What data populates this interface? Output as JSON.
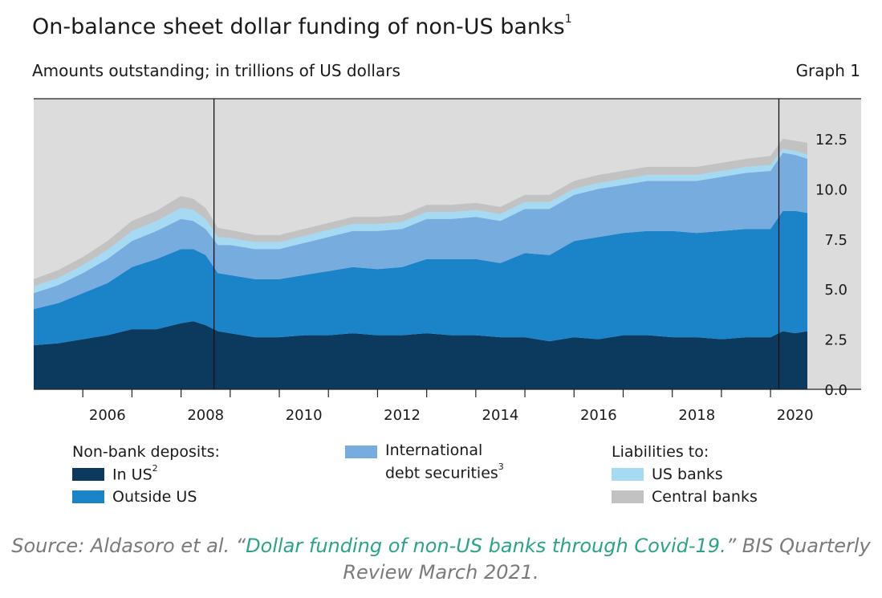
{
  "header": {
    "title": "On-balance sheet dollar funding of non-US banks",
    "title_note": "1",
    "subtitle": "Amounts outstanding; in trillions of US dollars",
    "graph_label": "Graph 1"
  },
  "legend": {
    "group1_heading": "Non-bank deposits:",
    "in_us": "In US",
    "in_us_note": "2",
    "outside_us": "Outside US",
    "ids_line1": "International",
    "ids_line2": "debt securities",
    "ids_note": "3",
    "group3_heading": "Liabilities to:",
    "us_banks": "US banks",
    "central_banks": "Central banks"
  },
  "source": {
    "prefix": "Source: Aldasoro et al. “",
    "link_text": "Dollar funding of non-US banks through Covid-19.",
    "suffix": "” BIS Quarterly Review March 2021."
  },
  "chart_data": {
    "type": "area",
    "stacked": true,
    "ylim": [
      0,
      14.5
    ],
    "y_ticks": [
      "12.5",
      "10.0",
      "7.5",
      "5.0",
      "2.5",
      "0.0"
    ],
    "y_tick_values": [
      12.5,
      10.0,
      7.5,
      5.0,
      2.5,
      0.0
    ],
    "x_tick_labels": [
      "2006",
      "2008",
      "2010",
      "2012",
      "2014",
      "2016",
      "2018",
      "2020"
    ],
    "xlim": [
      2005.0,
      2021.0
    ],
    "vertical_lines": [
      2008.67,
      2020.17
    ],
    "grid": false,
    "legend_position": "bottom",
    "x": [
      2005.0,
      2005.5,
      2006.0,
      2006.5,
      2007.0,
      2007.5,
      2008.0,
      2008.25,
      2008.5,
      2008.75,
      2009.0,
      2009.5,
      2010.0,
      2010.5,
      2011.0,
      2011.5,
      2012.0,
      2012.5,
      2013.0,
      2013.5,
      2014.0,
      2014.5,
      2015.0,
      2015.5,
      2016.0,
      2016.5,
      2017.0,
      2017.5,
      2018.0,
      2018.5,
      2019.0,
      2019.5,
      2020.0,
      2020.25,
      2020.5,
      2020.75
    ],
    "series": [
      {
        "name": "In US",
        "color": "#0c3a5e",
        "values": [
          2.2,
          2.3,
          2.5,
          2.7,
          3.0,
          3.0,
          3.3,
          3.4,
          3.2,
          2.9,
          2.8,
          2.6,
          2.6,
          2.7,
          2.7,
          2.8,
          2.7,
          2.7,
          2.8,
          2.7,
          2.7,
          2.6,
          2.6,
          2.4,
          2.6,
          2.5,
          2.7,
          2.7,
          2.6,
          2.6,
          2.5,
          2.6,
          2.6,
          2.9,
          2.8,
          2.9
        ]
      },
      {
        "name": "Outside US",
        "color": "#1b84c9",
        "values": [
          1.8,
          2.0,
          2.3,
          2.6,
          3.1,
          3.5,
          3.7,
          3.6,
          3.5,
          2.9,
          2.9,
          2.9,
          2.9,
          3.0,
          3.2,
          3.3,
          3.3,
          3.4,
          3.7,
          3.8,
          3.8,
          3.7,
          4.2,
          4.3,
          4.8,
          5.1,
          5.1,
          5.2,
          5.3,
          5.2,
          5.4,
          5.4,
          5.4,
          6.0,
          6.1,
          5.9
        ]
      },
      {
        "name": "International debt securities",
        "color": "#77acdf",
        "values": [
          0.8,
          0.9,
          1.0,
          1.2,
          1.3,
          1.4,
          1.5,
          1.4,
          1.3,
          1.4,
          1.5,
          1.5,
          1.5,
          1.6,
          1.7,
          1.8,
          1.9,
          1.9,
          2.0,
          2.0,
          2.1,
          2.1,
          2.2,
          2.3,
          2.3,
          2.4,
          2.4,
          2.5,
          2.5,
          2.6,
          2.7,
          2.8,
          2.9,
          2.9,
          2.8,
          2.7
        ]
      },
      {
        "name": "US banks",
        "color": "#a6d9f2",
        "values": [
          0.35,
          0.35,
          0.4,
          0.45,
          0.5,
          0.5,
          0.55,
          0.55,
          0.5,
          0.4,
          0.35,
          0.35,
          0.35,
          0.35,
          0.35,
          0.35,
          0.35,
          0.35,
          0.35,
          0.35,
          0.35,
          0.35,
          0.35,
          0.35,
          0.3,
          0.3,
          0.3,
          0.3,
          0.3,
          0.3,
          0.3,
          0.3,
          0.3,
          0.2,
          0.2,
          0.2
        ]
      },
      {
        "name": "Central banks",
        "color": "#c2c2c2",
        "values": [
          0.35,
          0.4,
          0.4,
          0.45,
          0.5,
          0.5,
          0.6,
          0.55,
          0.55,
          0.45,
          0.4,
          0.35,
          0.35,
          0.35,
          0.35,
          0.35,
          0.35,
          0.35,
          0.35,
          0.35,
          0.35,
          0.35,
          0.35,
          0.35,
          0.4,
          0.4,
          0.4,
          0.4,
          0.4,
          0.4,
          0.4,
          0.4,
          0.45,
          0.5,
          0.5,
          0.6
        ]
      }
    ]
  }
}
